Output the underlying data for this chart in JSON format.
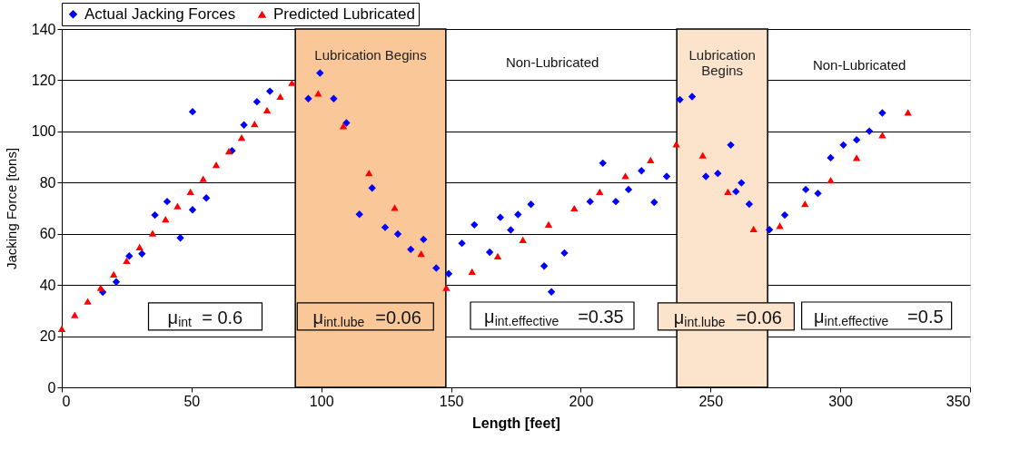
{
  "chart_data": {
    "type": "scatter",
    "xlabel": "Length [feet]",
    "ylabel": "Jacking Force [tons]",
    "xlim": [
      0,
      350
    ],
    "xticks": [
      0,
      50,
      100,
      150,
      200,
      250,
      300,
      350
    ],
    "ylim": [
      0,
      140
    ],
    "yticks": [
      0,
      20,
      40,
      60,
      80,
      100,
      120,
      140
    ],
    "grid": "y",
    "legend": "top",
    "series": [
      {
        "name": "Actual Jacking Forces",
        "color": "#0000ff",
        "marker": "diamond",
        "x": [
          15.8,
          21,
          26,
          30.9,
          35.9,
          40.6,
          45.7,
          50.4,
          50.4,
          55.7,
          65.6,
          70.2,
          75.2,
          80.2,
          95,
          99.5,
          104.8,
          109.7,
          114.7,
          119.6,
          124.6,
          129.5,
          134.5,
          139.4,
          144.3,
          149.1,
          154.2,
          159,
          164.9,
          169,
          173,
          175.8,
          180.8,
          185.9,
          188.7,
          193.7,
          203.6,
          208.5,
          213.5,
          218.4,
          223.4,
          228.3,
          233.1,
          238.2,
          242.9,
          248.2,
          252.8,
          257.8,
          259.8,
          261.9,
          264.9,
          272.7,
          278.6,
          286.7,
          291.4,
          296.3,
          301.2,
          306.3,
          311.2,
          316.2
        ],
        "values": [
          37.2,
          41.2,
          51.3,
          52.2,
          67.3,
          72.6,
          58.4,
          69.4,
          107.7,
          74,
          92.4,
          102.5,
          111.6,
          115.7,
          112.8,
          122.8,
          112.8,
          103.3,
          67.6,
          77.9,
          62.5,
          59.9,
          53.9,
          57.8,
          46.6,
          44.4,
          56.3,
          63.5,
          52.8,
          66.4,
          61.5,
          67.5,
          71.5,
          47.4,
          37.3,
          52.5,
          72.6,
          87.6,
          72.6,
          77.3,
          84.6,
          72.3,
          82.4,
          112.4,
          113.6,
          82.4,
          83.6,
          94.7,
          76.5,
          79.9,
          71.6,
          61.6,
          67.3,
          77.3,
          75.8,
          89.7,
          94.7,
          96.7,
          100.1,
          107.2
        ]
      },
      {
        "name": "Predicted Lubricated",
        "color": "#ff0000",
        "marker": "triangle",
        "x": [
          0,
          5,
          10,
          15,
          20,
          25,
          30,
          35,
          40,
          44.6,
          49.6,
          54.5,
          59.5,
          64.4,
          69.3,
          74.3,
          79.1,
          84.2,
          88.7,
          98.8,
          108.5,
          118.4,
          128.3,
          138.5,
          148.2,
          158.1,
          168,
          177.7,
          187.6,
          197.5,
          207.3,
          217.2,
          226.9,
          236.8,
          247,
          256.7,
          266.6,
          276.7,
          286.4,
          296.3,
          306.3,
          316.2,
          326.1
        ],
        "values": [
          22.9,
          28.3,
          33.6,
          38.9,
          44.2,
          49.5,
          54.8,
          60.2,
          65.7,
          70.8,
          76.4,
          81.5,
          87,
          92.3,
          97.6,
          102.9,
          108.3,
          113.6,
          119,
          114.9,
          102.1,
          83.8,
          70.2,
          52.2,
          38.9,
          45.2,
          51.3,
          57.6,
          63.7,
          70,
          76.4,
          82.6,
          88.8,
          95,
          90.7,
          76.4,
          61.9,
          63.1,
          71.7,
          80.9,
          89.7,
          98.6,
          107.4
        ]
      }
    ],
    "bands": [
      {
        "axis": "x",
        "from": 90,
        "to": 148,
        "label": "Lubrication Begins",
        "color": "#fac898"
      },
      {
        "axis": "x",
        "from": 237,
        "to": 272,
        "label": "Lubrication Begins",
        "color": "#fbe3cc"
      }
    ],
    "annotations": [
      "Non-Lubricated",
      "Non-Lubricated",
      "μ$_{int}$ = 0.6",
      "μ$_{int.lube}$ =0.06",
      "μ$_{int.effective}$ =0.35",
      "μ$_{int.lube}$ =0.06",
      "μ$_{int.effective}$ =0.5"
    ]
  }
}
